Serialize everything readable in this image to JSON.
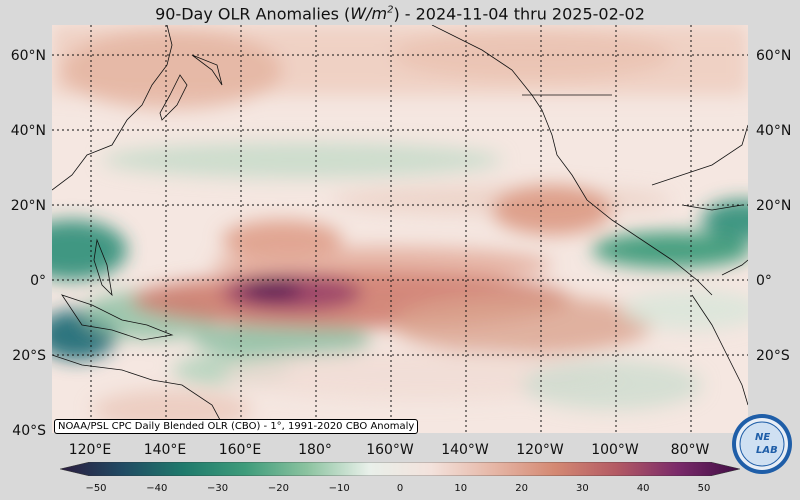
{
  "title": {
    "prefix": "90-Day OLR Anomalies (",
    "unit": "W/m",
    "unit_sup": "2",
    "suffix": ") - 2024-11-04 thru 2025-02-02"
  },
  "lat_labels": [
    "60°N",
    "40°N",
    "20°N",
    "0°",
    "20°S",
    "40°S"
  ],
  "lon_labels": [
    "120°E",
    "140°E",
    "160°E",
    "180°",
    "160°W",
    "140°W",
    "120°W",
    "100°W",
    "80°W"
  ],
  "credit": "NOAA/PSL CPC Daily Blended OLR (CBO) - 1°, 1991-2020 CBO Anomaly",
  "colorbar": {
    "ticks": [
      "−50",
      "−40",
      "−30",
      "−20",
      "−10",
      "0",
      "10",
      "20",
      "30",
      "40",
      "50"
    ],
    "range": [
      -50,
      50
    ],
    "colors": [
      "#2b1c3f",
      "#214a63",
      "#1f7a6c",
      "#3f9c7b",
      "#8cc3a0",
      "#e9f0ea",
      "#f3e2dc",
      "#e6b7a7",
      "#d48973",
      "#b35a64",
      "#7a2a6a",
      "#3f0d44"
    ]
  },
  "logo": {
    "text": "NEXLAB",
    "label_top": "NE",
    "label_bottom": "LAB"
  },
  "map_extent": {
    "lon_min": 100,
    "lon_max": 293,
    "lat_min": -40,
    "lat_max": 68
  }
}
